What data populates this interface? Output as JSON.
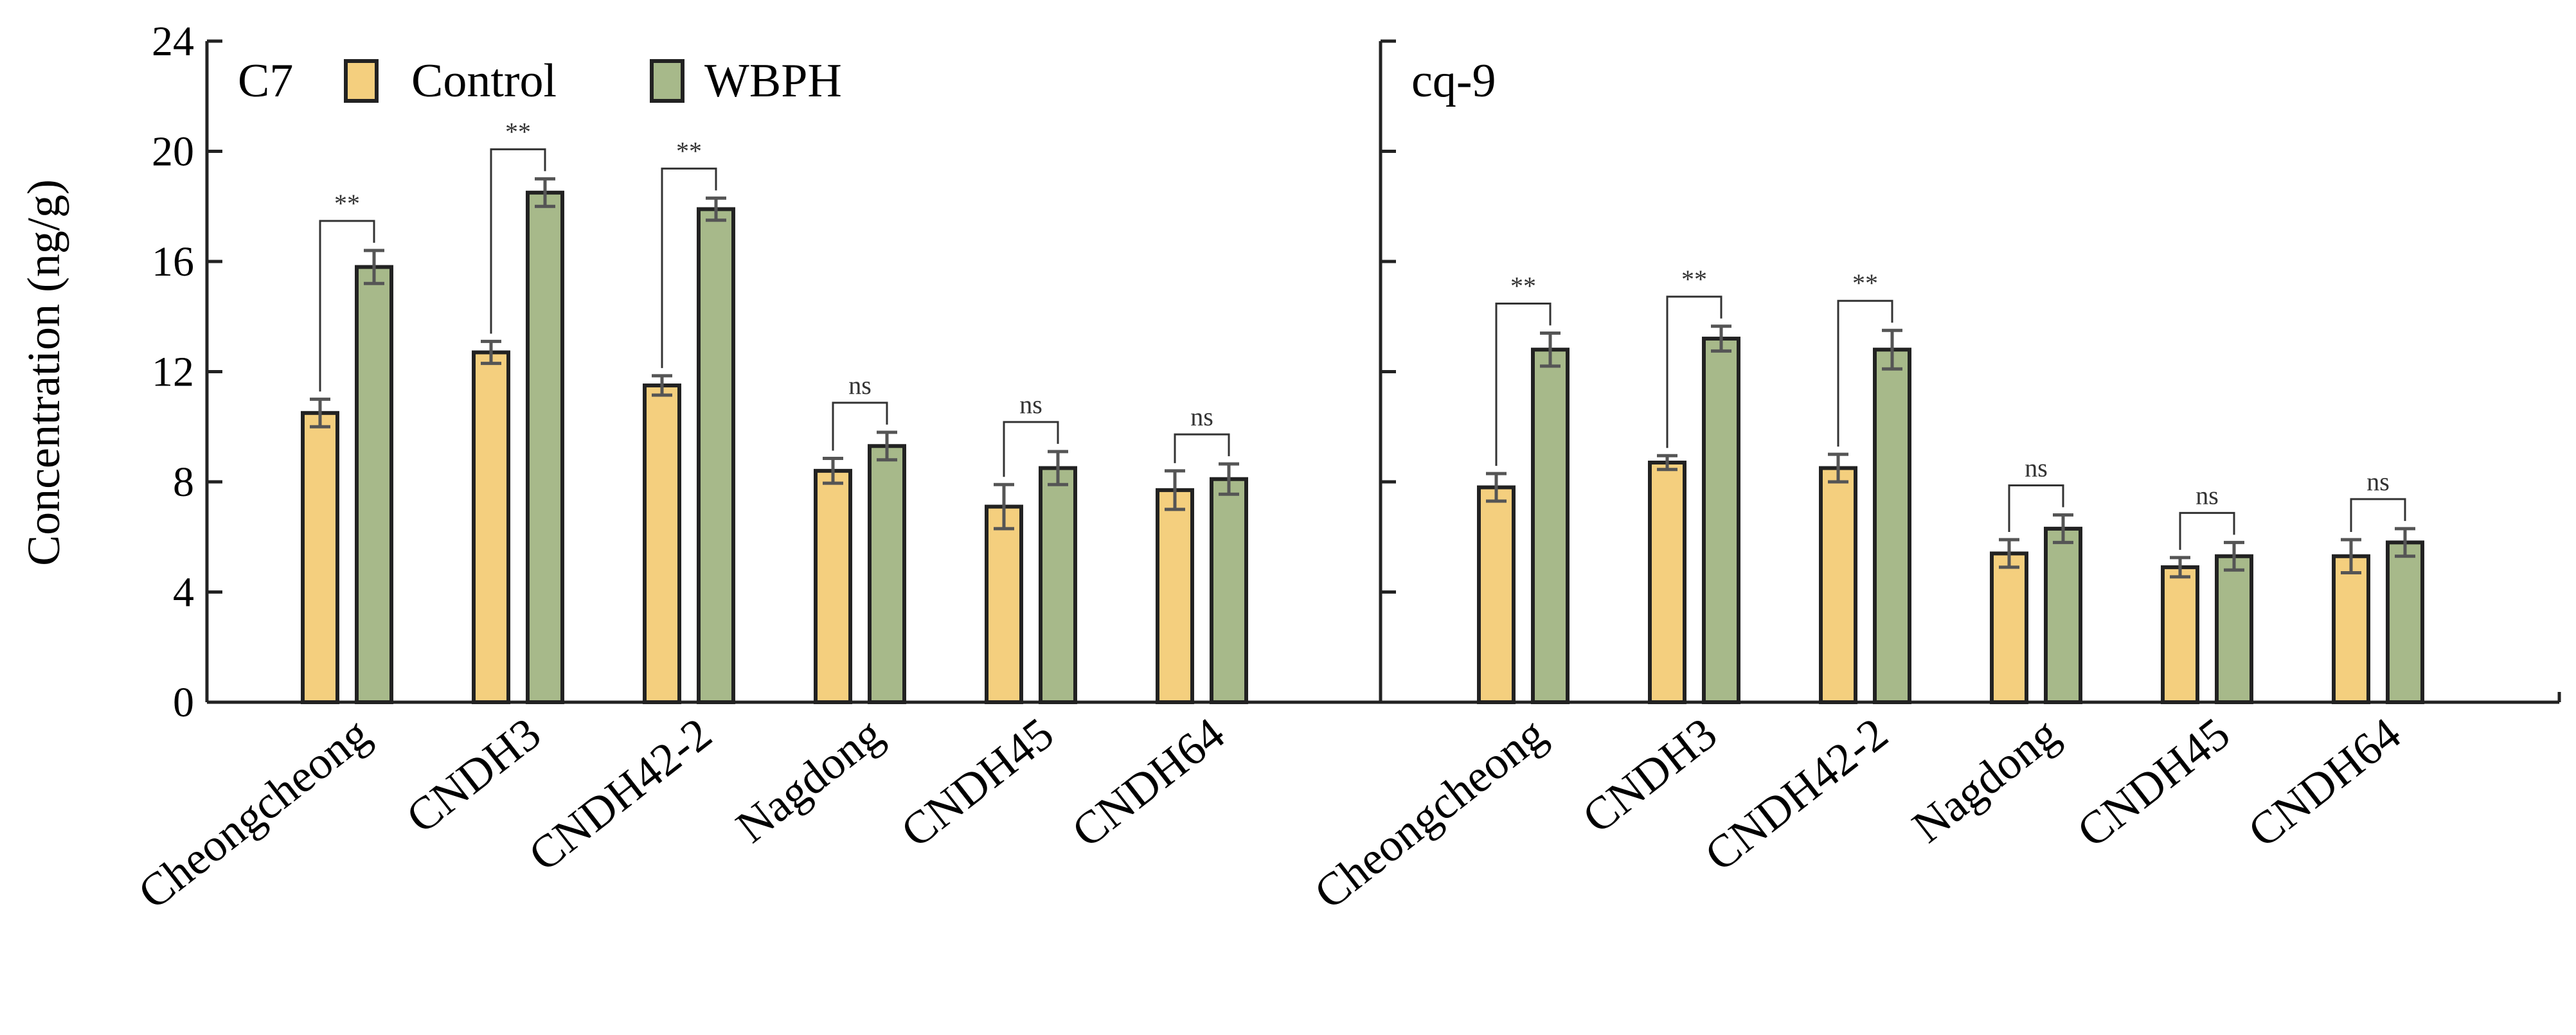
{
  "chart_data": {
    "type": "bar",
    "ylabel": "Concentration (ng/g)",
    "ylim": [
      0,
      24
    ],
    "yticks": [
      "0",
      "4",
      "8",
      "12",
      "16",
      "20",
      "24"
    ],
    "legend": {
      "position": "top-left",
      "entries": [
        {
          "name": "Control",
          "color": "#f4cf7e"
        },
        {
          "name": "WBPH",
          "color": "#a7b98a"
        }
      ]
    },
    "error_bar_color": "#555555",
    "panels": [
      {
        "label": "C7",
        "categories": [
          "Cheongcheong",
          "CNDH3",
          "CNDH42-2",
          "Nagdong",
          "CNDH45",
          "CNDH64"
        ],
        "series": [
          {
            "name": "Control",
            "values": [
              10.5,
              12.7,
              11.5,
              8.4,
              7.1,
              7.7
            ],
            "errors": [
              0.5,
              0.4,
              0.35,
              0.45,
              0.8,
              0.7
            ]
          },
          {
            "name": "WBPH",
            "values": [
              15.8,
              18.5,
              17.9,
              9.3,
              8.5,
              8.1
            ],
            "errors": [
              0.6,
              0.5,
              0.4,
              0.5,
              0.6,
              0.55
            ]
          }
        ],
        "significance": [
          "**",
          "**",
          "**",
          "ns",
          "ns",
          "ns"
        ]
      },
      {
        "label": "cq-9",
        "categories": [
          "Cheongcheong",
          "CNDH3",
          "CNDH42-2",
          "Nagdong",
          "CNDH45",
          "CNDH64"
        ],
        "series": [
          {
            "name": "Control",
            "values": [
              7.8,
              8.7,
              8.5,
              5.4,
              4.9,
              5.3
            ],
            "errors": [
              0.5,
              0.25,
              0.5,
              0.5,
              0.35,
              0.6
            ]
          },
          {
            "name": "WBPH",
            "values": [
              12.8,
              13.2,
              12.8,
              6.3,
              5.3,
              5.8
            ],
            "errors": [
              0.6,
              0.45,
              0.7,
              0.5,
              0.5,
              0.5
            ]
          }
        ],
        "significance": [
          "**",
          "**",
          "**",
          "ns",
          "ns",
          "ns"
        ]
      }
    ]
  }
}
